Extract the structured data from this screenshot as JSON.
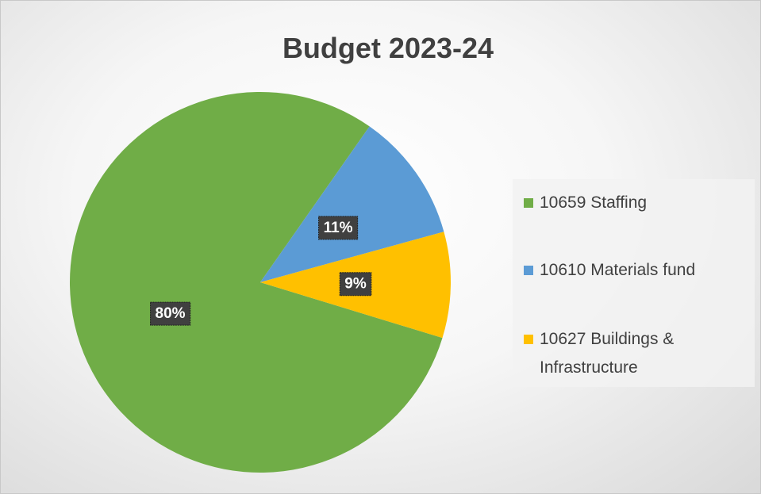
{
  "chart_data": {
    "type": "pie",
    "title": "Budget 2023-24",
    "categories": [
      "10659 Staffing",
      "10610 Materials fund",
      "10627 Buildings & Infrastructure"
    ],
    "values": [
      80,
      11,
      9
    ],
    "value_labels": [
      "80%",
      "11%",
      "9%"
    ],
    "colors": [
      "#70ad47",
      "#5b9bd5",
      "#ffc000"
    ],
    "legend": "right"
  }
}
